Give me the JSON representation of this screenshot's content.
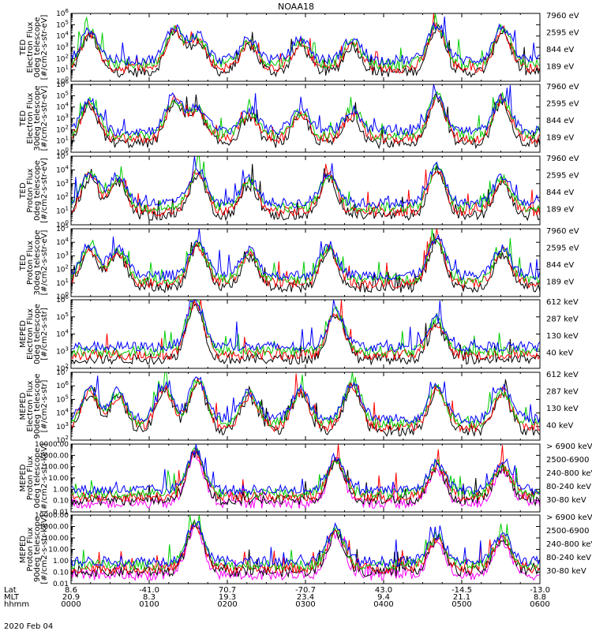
{
  "title": "NOAA18",
  "date": "2020 Feb 04",
  "chart_data": [
    {
      "type": "line",
      "ylabel": [
        "TED",
        "Electron Flux",
        "0deg telescope",
        "[#/cm2-s-str-eV]"
      ],
      "log": true,
      "ylim_exp": [
        0,
        6
      ],
      "tick_fmt": "exp",
      "series": [
        {
          "name": "7960 eV",
          "color": "#000000"
        },
        {
          "name": "2595 eV",
          "color": "#ff0000"
        },
        {
          "name": "844 eV",
          "color": "#00cc00"
        },
        {
          "name": "189 eV",
          "color": "#0000ff"
        }
      ],
      "passes": [
        [
          0.04,
          1
        ],
        [
          0.22,
          1.1
        ],
        [
          0.27,
          0.8
        ],
        [
          0.38,
          0.7
        ],
        [
          0.49,
          0.7
        ],
        [
          0.6,
          0.7
        ],
        [
          0.78,
          1.2
        ],
        [
          0.92,
          1.1
        ]
      ]
    },
    {
      "type": "line",
      "ylabel": [
        "TED",
        "Electron Flux",
        "30deg telescope",
        "[#/cm2-s-str-eV]"
      ],
      "log": true,
      "ylim_exp": [
        0,
        6
      ],
      "tick_fmt": "exp",
      "series": [
        {
          "name": "7960 eV",
          "color": "#000000"
        },
        {
          "name": "2595 eV",
          "color": "#ff0000"
        },
        {
          "name": "844 eV",
          "color": "#00cc00"
        },
        {
          "name": "189 eV",
          "color": "#0000ff"
        }
      ],
      "passes": [
        [
          0.04,
          1
        ],
        [
          0.22,
          1.1
        ],
        [
          0.27,
          0.8
        ],
        [
          0.38,
          0.7
        ],
        [
          0.49,
          0.7
        ],
        [
          0.6,
          0.7
        ],
        [
          0.78,
          1.2
        ],
        [
          0.92,
          1.1
        ]
      ]
    },
    {
      "type": "line",
      "ylabel": [
        "TED",
        "Proton Flux",
        "0deg telescope",
        "[#/cm2-s-str-eV]"
      ],
      "log": true,
      "ylim_exp": [
        0,
        5
      ],
      "tick_fmt": "exp",
      "series": [
        {
          "name": "7960 eV",
          "color": "#000000"
        },
        {
          "name": "2595 eV",
          "color": "#ff0000"
        },
        {
          "name": "844 eV",
          "color": "#00cc00"
        },
        {
          "name": "189 eV",
          "color": "#0000ff"
        }
      ],
      "passes": [
        [
          0.04,
          1
        ],
        [
          0.1,
          0.9
        ],
        [
          0.27,
          1.1
        ],
        [
          0.38,
          0.8
        ],
        [
          0.55,
          1.0
        ],
        [
          0.78,
          1.2
        ],
        [
          0.92,
          0.9
        ]
      ]
    },
    {
      "type": "line",
      "ylabel": [
        "TED",
        "Proton Flux",
        "30deg telescope",
        "[#/cm2-s-str-eV]"
      ],
      "log": true,
      "ylim_exp": [
        0,
        5
      ],
      "tick_fmt": "exp",
      "series": [
        {
          "name": "7960 eV",
          "color": "#000000"
        },
        {
          "name": "2595 eV",
          "color": "#ff0000"
        },
        {
          "name": "844 eV",
          "color": "#00cc00"
        },
        {
          "name": "189 eV",
          "color": "#0000ff"
        }
      ],
      "passes": [
        [
          0.04,
          1
        ],
        [
          0.1,
          0.9
        ],
        [
          0.27,
          1.1
        ],
        [
          0.38,
          0.8
        ],
        [
          0.55,
          1.0
        ],
        [
          0.78,
          1.2
        ],
        [
          0.92,
          0.9
        ]
      ]
    },
    {
      "type": "line",
      "ylabel": [
        "MEPED",
        "Electron Flux",
        "0deg telescope",
        "[#/cm2-s-str]"
      ],
      "log": true,
      "ylim_exp": [
        2,
        6
      ],
      "tick_fmt": "exp",
      "series": [
        {
          "name": "612 keV",
          "color": "#000000"
        },
        {
          "name": "287 keV",
          "color": "#ff0000"
        },
        {
          "name": "130 keV",
          "color": "#00cc00"
        },
        {
          "name": "40 keV",
          "color": "#0000ff"
        }
      ],
      "passes": [
        [
          0.265,
          1.5
        ],
        [
          0.565,
          1.2
        ],
        [
          0.78,
          0.9
        ]
      ]
    },
    {
      "type": "line",
      "ylabel": [
        "MEPED",
        "Electron Flux",
        "90deg telescope",
        "[#/cm2-s-str]"
      ],
      "log": true,
      "ylim_exp": [
        2,
        7
      ],
      "tick_fmt": "exp",
      "series": [
        {
          "name": "612 keV",
          "color": "#000000"
        },
        {
          "name": "287 keV",
          "color": "#ff0000"
        },
        {
          "name": "130 keV",
          "color": "#00cc00"
        },
        {
          "name": "40 keV",
          "color": "#0000ff"
        }
      ],
      "passes": [
        [
          0.04,
          1
        ],
        [
          0.1,
          0.9
        ],
        [
          0.2,
          1.1
        ],
        [
          0.27,
          1.3
        ],
        [
          0.38,
          0.9
        ],
        [
          0.49,
          1.0
        ],
        [
          0.6,
          1.2
        ],
        [
          0.78,
          1.1
        ],
        [
          0.92,
          1.0
        ]
      ]
    },
    {
      "type": "line",
      "ylabel": [
        "MEPED",
        "Proton Flux",
        "0deg telescope",
        "[#/cm2-s-str-keV]"
      ],
      "log": true,
      "ylim_exp": [
        -2,
        4
      ],
      "tick_fmt": "dec",
      "series": [
        {
          "name": "> 6900 keV",
          "color": "#ff00ff"
        },
        {
          "name": "2500-6900",
          "color": "#000000"
        },
        {
          "name": "240-800 keV",
          "color": "#ff0000"
        },
        {
          "name": "80-240 keV",
          "color": "#00cc00"
        },
        {
          "name": "30-80 keV",
          "color": "#0000ff"
        }
      ],
      "passes": [
        [
          0.265,
          1.3
        ],
        [
          0.565,
          1.1
        ],
        [
          0.78,
          0.9
        ],
        [
          0.92,
          0.9
        ]
      ]
    },
    {
      "type": "line",
      "ylabel": [
        "MEPED",
        "Proton Flux",
        "90deg telescope",
        "[#/cm2-s-str-keV]"
      ],
      "log": true,
      "ylim_exp": [
        -2,
        4
      ],
      "tick_fmt": "dec",
      "series": [
        {
          "name": "> 6900 keV",
          "color": "#ff00ff"
        },
        {
          "name": "2500-6900",
          "color": "#000000"
        },
        {
          "name": "240-800 keV",
          "color": "#ff0000"
        },
        {
          "name": "80-240 keV",
          "color": "#00cc00"
        },
        {
          "name": "30-80 keV",
          "color": "#0000ff"
        }
      ],
      "passes": [
        [
          0.265,
          1.3
        ],
        [
          0.565,
          1.1
        ],
        [
          0.78,
          0.9
        ],
        [
          0.92,
          0.9
        ]
      ]
    }
  ],
  "xaxis": {
    "row_labels": [
      "Lat",
      "MLT",
      "hhmm"
    ],
    "ticks": [
      {
        "lat": "8.6",
        "mlt": "20.9",
        "time": "0000"
      },
      {
        "lat": "-41.0",
        "mlt": "8.3",
        "time": "0100"
      },
      {
        "lat": "70.7",
        "mlt": "19.3",
        "time": "0200"
      },
      {
        "lat": "-70.7",
        "mlt": "23.4",
        "time": "0300"
      },
      {
        "lat": "43.0",
        "mlt": "9.4",
        "time": "0400"
      },
      {
        "lat": "-14.5",
        "mlt": "21.1",
        "time": "0500"
      },
      {
        "lat": "-13.0",
        "mlt": "8.8",
        "time": "0600"
      }
    ]
  }
}
